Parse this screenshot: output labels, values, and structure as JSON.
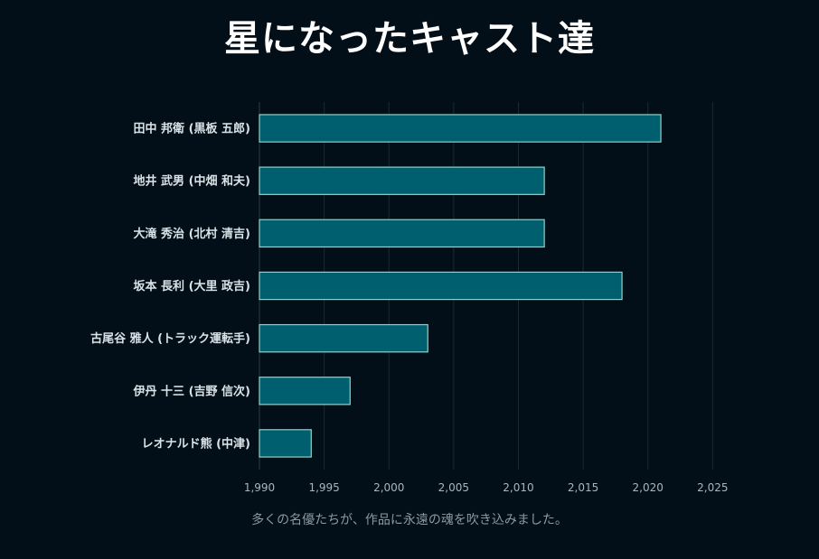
{
  "title": "星になったキャスト達",
  "caption": "多くの名優たちが、作品に永遠の魂を吹き込みました。",
  "colors": {
    "background": "#020f18",
    "bar_fill": "#005f6e",
    "bar_stroke": "#8fd3c4",
    "grid": "#1a2a33",
    "tick_text": "#a9b6bd",
    "label_text": "#d9e2e7"
  },
  "chart_data": {
    "type": "bar",
    "orientation": "horizontal",
    "title": "星になったキャスト達",
    "xlabel": "",
    "ylabel": "",
    "xlim": [
      1990,
      2027
    ],
    "xticks": [
      1990,
      1995,
      2000,
      2005,
      2010,
      2015,
      2020,
      2025
    ],
    "xtick_labels": [
      "1,990",
      "1,995",
      "2,000",
      "2,005",
      "2,010",
      "2,015",
      "2,020",
      "2,025"
    ],
    "categories": [
      "田中 邦衛 (黒板 五郎)",
      "地井 武男 (中畑 和夫)",
      "大滝 秀治 (北村 清吉)",
      "坂本 長利 (大里 政吉)",
      "古尾谷 雅人 (トラック運転手)",
      "伊丹 十三 (吉野 信次)",
      "レオナルド熊 (中津)"
    ],
    "values": [
      2021,
      2012,
      2012,
      2018,
      2003,
      1997,
      1994
    ],
    "grid": true,
    "legend": "none"
  }
}
